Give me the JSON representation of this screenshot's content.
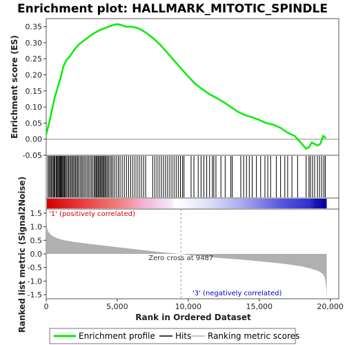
{
  "chart_data": [
    {
      "type": "line",
      "title": "Enrichment plot: HALLMARK_MITOTIC_SPINDLE",
      "ylabel": "Enrichment score (ES)",
      "xlim": [
        0,
        20600
      ],
      "ylim": [
        -0.05,
        0.375
      ],
      "yticks": [
        -0.05,
        0.0,
        0.05,
        0.1,
        0.15,
        0.2,
        0.25,
        0.3,
        0.35
      ],
      "ytick_labels": [
        "-0.05",
        "0.00",
        "0.05",
        "0.10",
        "0.15",
        "0.20",
        "0.25",
        "0.30",
        "0.35"
      ],
      "grid": false,
      "color": "#00ee00",
      "series": [
        {
          "name": "Enrichment profile",
          "x": [
            0,
            200,
            400,
            600,
            800,
            1000,
            1200,
            1400,
            1700,
            2000,
            2300,
            2600,
            2900,
            3200,
            3500,
            3800,
            4100,
            4400,
            4700,
            5000,
            5300,
            5600,
            6000,
            6500,
            7000,
            7500,
            8000,
            8500,
            9000,
            9500,
            10000,
            10500,
            11000,
            11500,
            12000,
            12500,
            13000,
            13500,
            14000,
            14500,
            15000,
            15500,
            16000,
            16500,
            17000,
            17500,
            18000,
            18300,
            18500,
            18700,
            18900,
            19100,
            19300,
            19500,
            19700
          ],
          "values": [
            0.015,
            0.05,
            0.09,
            0.13,
            0.16,
            0.19,
            0.225,
            0.245,
            0.26,
            0.28,
            0.295,
            0.305,
            0.315,
            0.325,
            0.333,
            0.34,
            0.345,
            0.35,
            0.355,
            0.358,
            0.355,
            0.35,
            0.35,
            0.345,
            0.332,
            0.315,
            0.295,
            0.27,
            0.245,
            0.22,
            0.195,
            0.172,
            0.155,
            0.14,
            0.128,
            0.115,
            0.1,
            0.085,
            0.075,
            0.068,
            0.06,
            0.05,
            0.045,
            0.035,
            0.02,
            0.01,
            -0.015,
            -0.03,
            -0.025,
            -0.01,
            -0.015,
            -0.02,
            -0.015,
            0.01,
            0.003
          ]
        }
      ]
    },
    {
      "type": "scatter",
      "series": [
        {
          "name": "Hits",
          "x": [
            120,
            200,
            280,
            350,
            420,
            500,
            560,
            620,
            700,
            760,
            820,
            880,
            940,
            990,
            1040,
            1100,
            1160,
            1220,
            1280,
            1340,
            1420,
            1500,
            1580,
            1660,
            1740,
            1820,
            1900,
            1980,
            2060,
            2140,
            2220,
            2300,
            2400,
            2500,
            2580,
            2680,
            2780,
            2880,
            2980,
            3080,
            3180,
            3280,
            3380,
            3450,
            3520,
            3590,
            3660,
            3730,
            3800,
            3870,
            3940,
            4010,
            4080,
            4150,
            4230,
            4310,
            4400,
            4500,
            4600,
            4700,
            4820,
            4950,
            5080,
            5200,
            5350,
            5500,
            5650,
            5800,
            5950,
            6100,
            6250,
            6400,
            6550,
            6700,
            6850,
            7000,
            7500,
            7650,
            7800,
            7950,
            8100,
            8250,
            8400,
            8550,
            8700,
            8850,
            9000,
            9150,
            9300,
            9450,
            9600,
            9700,
            10200,
            10400,
            10700,
            10900,
            11100,
            11300,
            11500,
            11700,
            11800,
            11950,
            12300,
            12600,
            13000,
            13100,
            13700,
            13900,
            14100,
            14300,
            14500,
            14800,
            15100,
            15400,
            15600,
            15800,
            16200,
            16500,
            16800,
            17000,
            17300,
            17700,
            18300,
            18500,
            18600,
            18750,
            18900,
            19100,
            19250,
            19400,
            19550,
            19650
          ]
        }
      ]
    },
    {
      "type": "area",
      "ylabel": "Ranked list metric (Signal2Noise)",
      "xlabel": "Rank in Ordered Dataset",
      "xlim": [
        0,
        20600
      ],
      "ylim": [
        -1.65,
        1.65
      ],
      "xticks": [
        0,
        5000,
        10000,
        15000,
        20000
      ],
      "xtick_labels": [
        "0",
        "5,000",
        "10,000",
        "15,000",
        "20,000"
      ],
      "yticks": [
        -1.5,
        -1.0,
        -0.5,
        0.0,
        0.5,
        1.0,
        1.5
      ],
      "ytick_labels": [
        "-1.5",
        "-1.0",
        "-0.5",
        "0.0",
        "0.5",
        "1.0",
        "1.5"
      ],
      "color": "#b0b0b0",
      "series": [
        {
          "name": "Ranking metric scores",
          "x": [
            0,
            50,
            150,
            300,
            500,
            800,
            1200,
            2000,
            3000,
            4000,
            5000,
            6000,
            7000,
            8000,
            9000,
            9487,
            10000,
            11000,
            12000,
            13000,
            14000,
            15000,
            16000,
            17000,
            18000,
            18500,
            19000,
            19300,
            19500,
            19620,
            19700,
            19750
          ],
          "values": [
            1.55,
            0.95,
            0.82,
            0.72,
            0.64,
            0.57,
            0.51,
            0.44,
            0.37,
            0.31,
            0.25,
            0.19,
            0.13,
            0.07,
            0.02,
            0.0,
            -0.04,
            -0.09,
            -0.14,
            -0.18,
            -0.22,
            -0.27,
            -0.32,
            -0.38,
            -0.46,
            -0.52,
            -0.6,
            -0.67,
            -0.75,
            -0.88,
            -1.15,
            -1.6
          ]
        }
      ],
      "annotations": {
        "zero_cross": "Zero cross at 9487",
        "zero_cross_x": 9487,
        "positive": "'1' (positively correlated)",
        "negative": "'3' (negatively correlated)"
      }
    }
  ],
  "legend": {
    "items": [
      {
        "label": "Enrichment profile",
        "color": "#00ee00"
      },
      {
        "label": "Hits",
        "color": "#000000"
      },
      {
        "label": "Ranking metric scores",
        "color": "#b0b0b0"
      }
    ]
  }
}
